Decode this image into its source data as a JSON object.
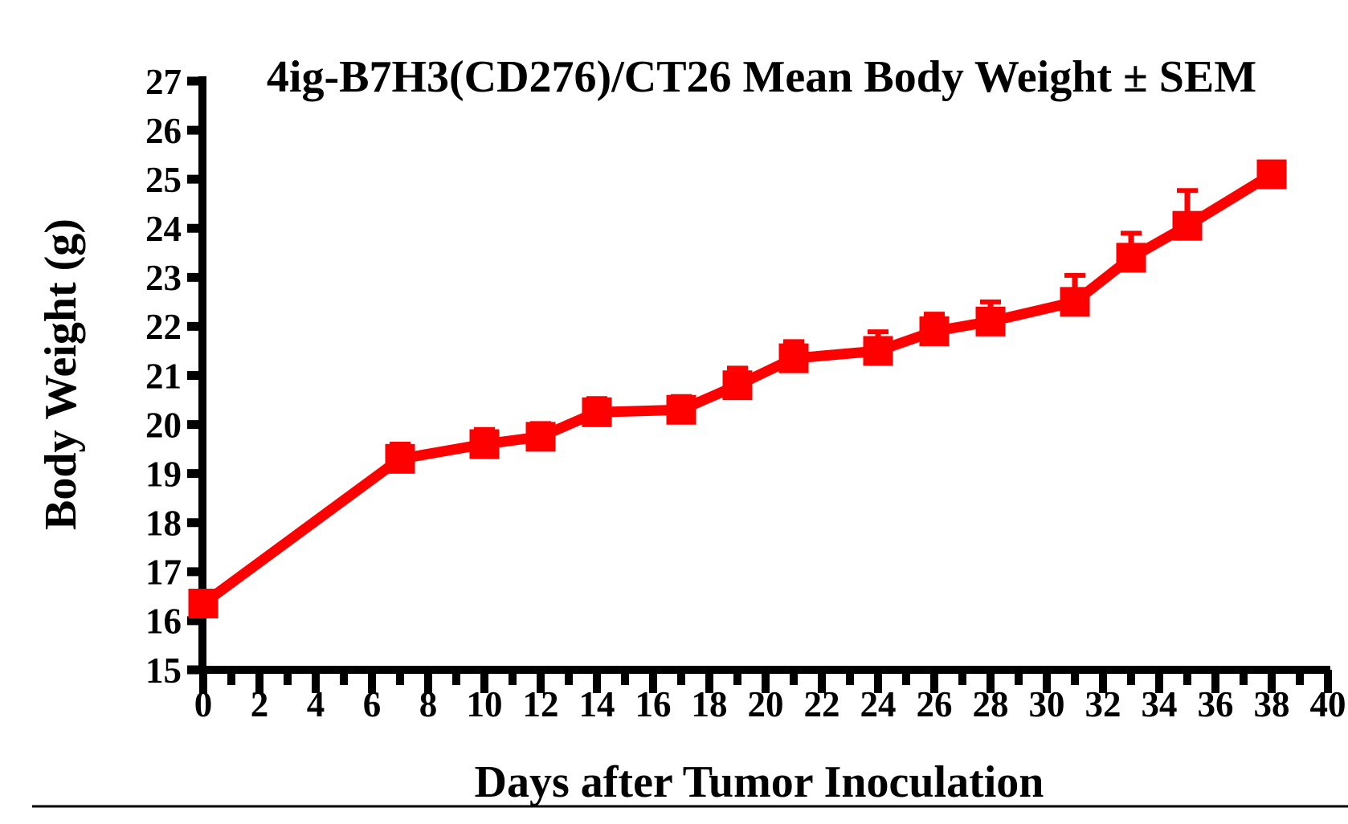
{
  "chart_data": {
    "type": "line",
    "title": "4ig-B7H3(CD276)/CT26 Mean Body Weight ± SEM",
    "xlabel": "Days after Tumor Inoculation",
    "ylabel": "Body Weight (g)",
    "grid": false,
    "legend": "none",
    "x_axis": {
      "min": 0,
      "max": 40,
      "label_step": 2,
      "minor_tick_step": 1,
      "tick_labels": [
        "0",
        "2",
        "4",
        "6",
        "8",
        "10",
        "12",
        "14",
        "16",
        "18",
        "20",
        "22",
        "24",
        "26",
        "28",
        "30",
        "32",
        "34",
        "36",
        "38",
        "40"
      ]
    },
    "y_axis": {
      "min": 15,
      "max": 27,
      "tick_step": 1,
      "tick_labels": [
        "15",
        "16",
        "17",
        "18",
        "19",
        "20",
        "21",
        "22",
        "23",
        "24",
        "25",
        "26",
        "27"
      ]
    },
    "series": [
      {
        "name": "4ig-B7H3(CD276)/CT26",
        "color": "#FF0000",
        "marker": "filled-square",
        "error_bar_style": "SEM, upward whisker with cap",
        "x": [
          0,
          7,
          10,
          12,
          14,
          17,
          19,
          21,
          24,
          26,
          28,
          31,
          33,
          35,
          38
        ],
        "y": [
          16.35,
          19.3,
          19.6,
          19.75,
          20.25,
          20.3,
          20.8,
          21.35,
          21.5,
          21.9,
          22.1,
          22.5,
          23.4,
          24.05,
          25.1
        ],
        "sem": [
          0,
          0.3,
          0.3,
          0.27,
          0.28,
          0.27,
          0.35,
          0.34,
          0.39,
          0.35,
          0.4,
          0.54,
          0.5,
          0.72,
          0
        ]
      }
    ]
  },
  "colors": {
    "axis": "#000000",
    "series": "#FF0000",
    "background": "#FFFFFF"
  }
}
